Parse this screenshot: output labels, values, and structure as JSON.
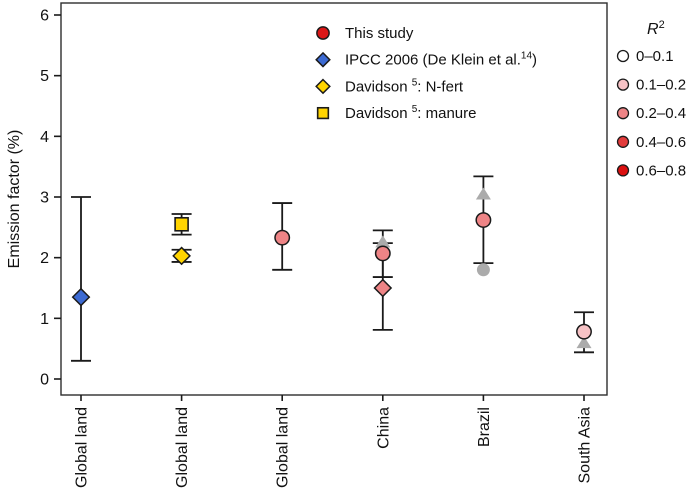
{
  "chart_data": {
    "type": "scatter",
    "title": "",
    "ylabel": "Emission factor (%)",
    "xlabel": "",
    "ylim": [
      0,
      6
    ],
    "yticks": [
      0,
      1,
      2,
      3,
      4,
      5,
      6
    ],
    "grid": false,
    "categories": [
      "Global land",
      "Global land",
      "Global land",
      "China",
      "Brazil",
      "South Asia"
    ],
    "series_legend": [
      {
        "marker": "circle",
        "color": "#DB1616",
        "pre": "This study",
        "sup": "",
        "post": ""
      },
      {
        "marker": "diamond",
        "color": "#3C6AD2",
        "pre": " IPCC 2006 (De Klein et al.",
        "sup": "14",
        "post": ")"
      },
      {
        "marker": "diamond",
        "color": "#FFD400",
        "pre": "Davidson ",
        "sup": "5",
        "post": ": N-fert"
      },
      {
        "marker": "square",
        "color": "#FFD400",
        "pre": "Davidson ",
        "sup": "5",
        "post": ": manure"
      }
    ],
    "r2_legend": {
      "title_pre": "R",
      "title_sup": "2",
      "items": [
        {
          "color": "#FFFFFF",
          "label": "0–0.1"
        },
        {
          "color": "#F6C2C5",
          "label": "0.1–0.2"
        },
        {
          "color": "#EE8486",
          "label": "0.2–0.4"
        },
        {
          "color": "#E23B3B",
          "label": "0.4–0.6"
        },
        {
          "color": "#DB1010",
          "label": "0.6–0.8"
        }
      ]
    },
    "points": [
      {
        "cat": 0,
        "marker": "diamond",
        "color": "#3C6AD2",
        "gray": false,
        "value": 1.35,
        "err_low": 0.3,
        "err_high": 3.0
      },
      {
        "cat": 1,
        "marker": "square",
        "color": "#FFD400",
        "gray": false,
        "value": 2.55,
        "err_low": 2.38,
        "err_high": 2.72
      },
      {
        "cat": 1,
        "marker": "diamond",
        "color": "#FFD400",
        "gray": false,
        "value": 2.03,
        "err_low": 1.93,
        "err_high": 2.13
      },
      {
        "cat": 2,
        "marker": "circle",
        "color": "#EE8486",
        "gray": false,
        "value": 2.33,
        "err_low": 1.8,
        "err_high": 2.9
      },
      {
        "cat": 3,
        "marker": "triangle",
        "color": "#ABABAB",
        "gray": true,
        "value": 2.26
      },
      {
        "cat": 3,
        "marker": "diamond",
        "color": "#EE8486",
        "gray": false,
        "value": 1.5,
        "err_low": 0.81,
        "err_high": 2.24
      },
      {
        "cat": 3,
        "marker": "circle",
        "color": "#EE8486",
        "gray": false,
        "value": 2.07,
        "err_low": 1.68,
        "err_high": 2.45
      },
      {
        "cat": 4,
        "marker": "triangle",
        "color": "#ABABAB",
        "gray": true,
        "value": 3.05
      },
      {
        "cat": 4,
        "marker": "circle",
        "color": "#ABABAB",
        "gray": true,
        "value": 1.8
      },
      {
        "cat": 4,
        "marker": "circle",
        "color": "#EE8486",
        "gray": false,
        "value": 2.62,
        "err_low": 1.91,
        "err_high": 3.34
      },
      {
        "cat": 5,
        "marker": "triangle",
        "color": "#ABABAB",
        "gray": true,
        "value": 0.6
      },
      {
        "cat": 5,
        "marker": "circle",
        "color": "#F6C2C5",
        "gray": false,
        "value": 0.78,
        "err_low": 0.44,
        "err_high": 1.1
      }
    ]
  }
}
